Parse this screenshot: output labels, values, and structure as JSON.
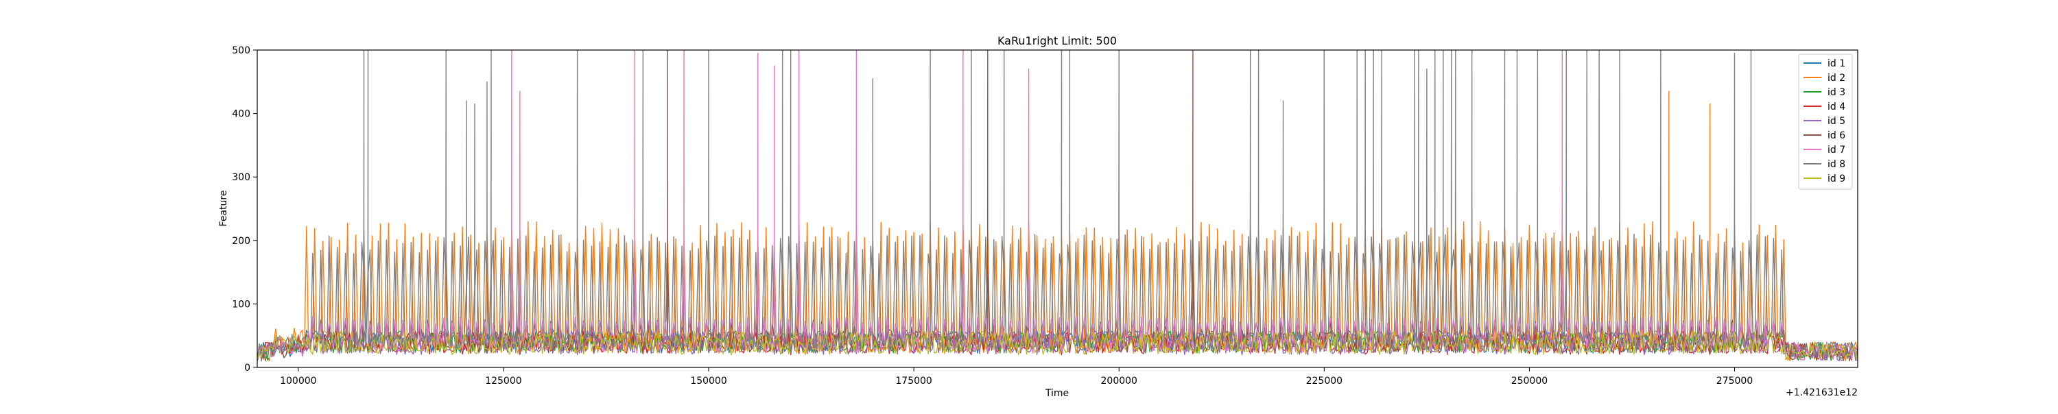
{
  "chart_data": {
    "type": "line",
    "title": "KaRu1right Limit: 500",
    "xlabel": "Time",
    "ylabel": "Feature",
    "x_offset_label": "+1.421631e12",
    "xlim": [
      95000,
      290000
    ],
    "ylim": [
      0,
      500
    ],
    "x_ticks": [
      100000,
      125000,
      150000,
      175000,
      200000,
      225000,
      250000,
      275000
    ],
    "x_tick_labels": [
      "100000",
      "125000",
      "150000",
      "175000",
      "200000",
      "225000",
      "250000",
      "275000"
    ],
    "y_ticks": [
      0,
      100,
      200,
      300,
      400,
      500
    ],
    "y_tick_labels": [
      "0",
      "100",
      "200",
      "300",
      "400",
      "500"
    ],
    "grid": false,
    "legend_position": "top-right",
    "signal": {
      "active_range": [
        101000,
        281000
      ],
      "cycle_period": 1000,
      "idle_level": 25,
      "active_baseline": 40
    },
    "series": [
      {
        "name": "id 1",
        "color": "#1f77b4",
        "peak": 60,
        "spikes": []
      },
      {
        "name": "id 2",
        "color": "#ff7f0e",
        "peak": 230,
        "spikes": [
          [
            267000,
            435
          ],
          [
            272000,
            415
          ]
        ]
      },
      {
        "name": "id 3",
        "color": "#2ca02c",
        "peak": 55,
        "spikes": []
      },
      {
        "name": "id 4",
        "color": "#d62728",
        "peak": 70,
        "spikes": []
      },
      {
        "name": "id 5",
        "color": "#9467bd",
        "peak": 55,
        "spikes": []
      },
      {
        "name": "id 6",
        "color": "#8c564b",
        "peak": 75,
        "spikes": [
          [
            145000,
            500
          ],
          [
            184000,
            500
          ],
          [
            209000,
            500
          ]
        ]
      },
      {
        "name": "id 7",
        "color": "#e377c2",
        "peak": 80,
        "spikes": [
          [
            126000,
            500
          ],
          [
            127000,
            435
          ],
          [
            141000,
            500
          ],
          [
            147000,
            500
          ],
          [
            156000,
            495
          ],
          [
            158000,
            475
          ],
          [
            161000,
            500
          ],
          [
            168000,
            500
          ],
          [
            181000,
            500
          ],
          [
            189000,
            470
          ],
          [
            200000,
            500
          ],
          [
            254000,
            500
          ]
        ]
      },
      {
        "name": "id 8",
        "color": "#7f7f7f",
        "peak": 210,
        "spikes": [
          [
            108000,
            500
          ],
          [
            108500,
            500
          ],
          [
            118000,
            500
          ],
          [
            120500,
            420
          ],
          [
            121500,
            415
          ],
          [
            123000,
            450
          ],
          [
            123500,
            500
          ],
          [
            134000,
            500
          ],
          [
            142000,
            500
          ],
          [
            150000,
            500
          ],
          [
            159000,
            500
          ],
          [
            160000,
            500
          ],
          [
            170000,
            455
          ],
          [
            177000,
            500
          ],
          [
            182000,
            500
          ],
          [
            186000,
            500
          ],
          [
            193000,
            500
          ],
          [
            194000,
            500
          ],
          [
            200000,
            500
          ],
          [
            216000,
            500
          ],
          [
            217000,
            500
          ],
          [
            220000,
            420
          ],
          [
            225000,
            500
          ],
          [
            229000,
            500
          ],
          [
            230000,
            500
          ],
          [
            231000,
            500
          ],
          [
            232000,
            500
          ],
          [
            236000,
            500
          ],
          [
            236500,
            500
          ],
          [
            237500,
            470
          ],
          [
            238500,
            500
          ],
          [
            239500,
            500
          ],
          [
            240500,
            500
          ],
          [
            241000,
            500
          ],
          [
            243000,
            500
          ],
          [
            247000,
            500
          ],
          [
            248500,
            500
          ],
          [
            251000,
            500
          ],
          [
            254500,
            500
          ],
          [
            257000,
            500
          ],
          [
            258500,
            500
          ],
          [
            261000,
            500
          ],
          [
            266000,
            500
          ],
          [
            275000,
            495
          ],
          [
            277000,
            500
          ]
        ]
      },
      {
        "name": "id 9",
        "color": "#bcbd22",
        "peak": 45,
        "spikes": []
      }
    ]
  }
}
